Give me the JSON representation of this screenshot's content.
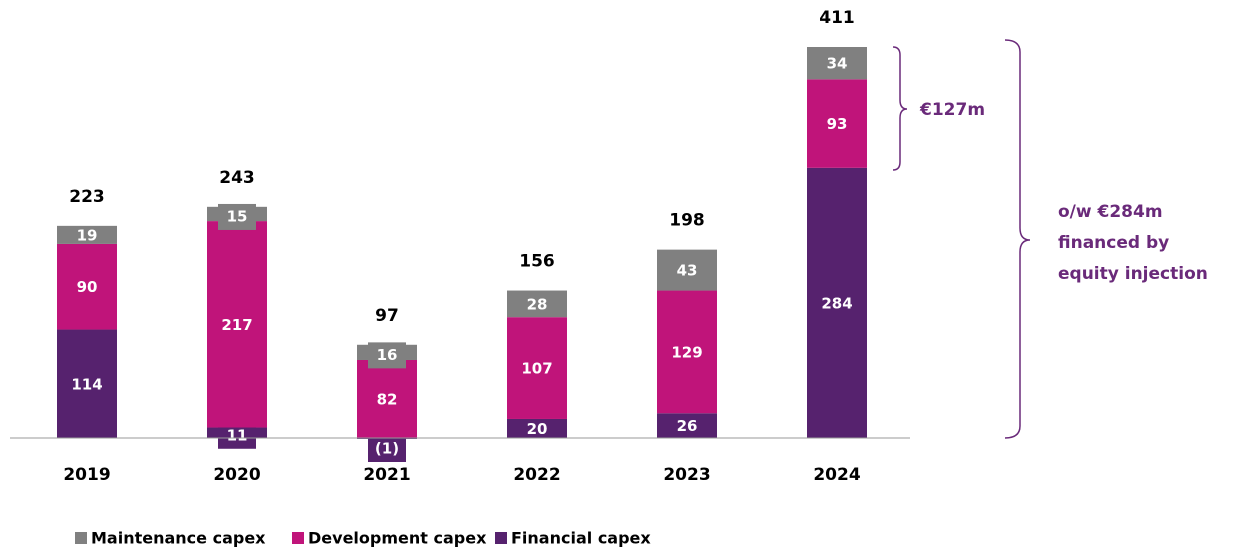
{
  "chart_data": {
    "type": "bar",
    "stacked": true,
    "categories": [
      "2019",
      "2020",
      "2021",
      "2022",
      "2023",
      "2024"
    ],
    "series": [
      {
        "name": "Maintenance capex",
        "color": "#808080",
        "values": [
          19,
          15,
          16,
          28,
          43,
          34
        ]
      },
      {
        "name": "Development capex",
        "color": "#c0147a",
        "values": [
          90,
          217,
          82,
          107,
          129,
          93
        ]
      },
      {
        "name": "Financial capex",
        "color": "#56226e",
        "values": [
          114,
          11,
          -1,
          20,
          26,
          284
        ],
        "value_labels": [
          "114",
          "11",
          "(1)",
          "20",
          "26",
          "284"
        ]
      }
    ],
    "totals": [
      223,
      243,
      97,
      156,
      198,
      411
    ],
    "annotations": [
      "€127m",
      [
        "o/w €284m",
        "financed by",
        "equity injection"
      ]
    ]
  }
}
